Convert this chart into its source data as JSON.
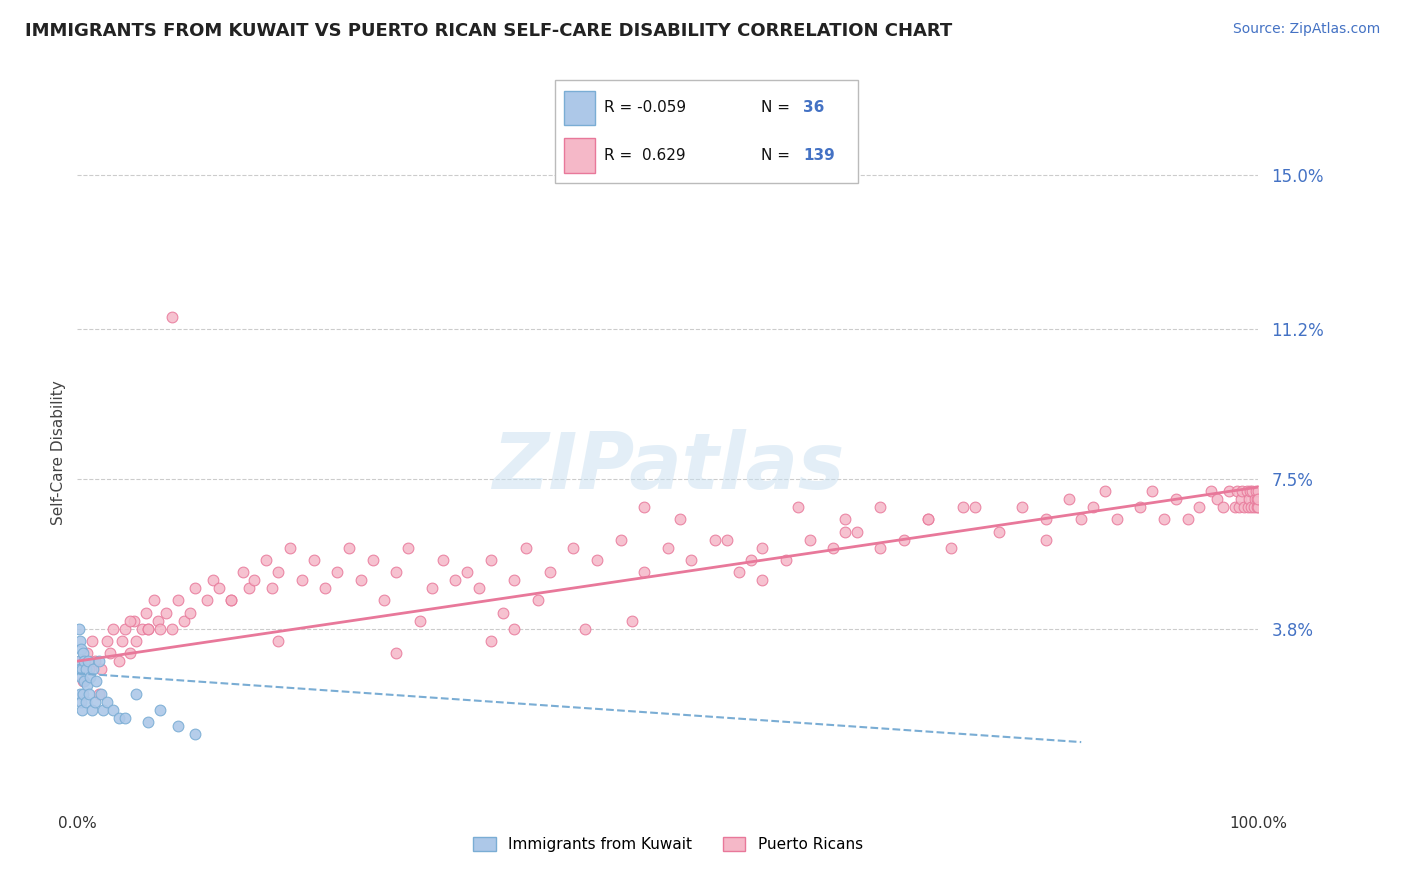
{
  "title": "IMMIGRANTS FROM KUWAIT VS PUERTO RICAN SELF-CARE DISABILITY CORRELATION CHART",
  "source": "Source: ZipAtlas.com",
  "ylabel": "Self-Care Disability",
  "yticks": [
    0.0,
    0.038,
    0.075,
    0.112,
    0.15
  ],
  "ytick_labels": [
    "",
    "3.8%",
    "7.5%",
    "11.2%",
    "15.0%"
  ],
  "xlim": [
    0.0,
    1.0
  ],
  "ylim": [
    -0.005,
    0.168
  ],
  "color_blue": "#adc8e8",
  "color_pink": "#f5b8c8",
  "edge_blue": "#7aadd4",
  "edge_pink": "#e8789a",
  "line_blue_color": "#7aadd4",
  "line_pink_color": "#e8789a",
  "watermark": "ZIPatlas",
  "title_color": "#222222",
  "source_color": "#4472c4",
  "ytick_color": "#4472c4",
  "blue_x": [
    0.001,
    0.001,
    0.002,
    0.002,
    0.002,
    0.003,
    0.003,
    0.003,
    0.004,
    0.004,
    0.005,
    0.005,
    0.006,
    0.006,
    0.007,
    0.007,
    0.008,
    0.009,
    0.01,
    0.011,
    0.012,
    0.013,
    0.015,
    0.016,
    0.018,
    0.02,
    0.022,
    0.025,
    0.03,
    0.035,
    0.04,
    0.05,
    0.06,
    0.07,
    0.085,
    0.1
  ],
  "blue_y": [
    0.03,
    0.038,
    0.022,
    0.028,
    0.035,
    0.02,
    0.026,
    0.033,
    0.018,
    0.028,
    0.022,
    0.032,
    0.025,
    0.03,
    0.02,
    0.028,
    0.024,
    0.03,
    0.022,
    0.026,
    0.018,
    0.028,
    0.02,
    0.025,
    0.03,
    0.022,
    0.018,
    0.02,
    0.018,
    0.016,
    0.016,
    0.022,
    0.015,
    0.018,
    0.014,
    0.012
  ],
  "pink_x": [
    0.003,
    0.005,
    0.008,
    0.01,
    0.012,
    0.015,
    0.018,
    0.02,
    0.025,
    0.028,
    0.03,
    0.035,
    0.038,
    0.04,
    0.045,
    0.048,
    0.05,
    0.055,
    0.058,
    0.06,
    0.065,
    0.068,
    0.07,
    0.075,
    0.08,
    0.085,
    0.09,
    0.095,
    0.1,
    0.11,
    0.115,
    0.12,
    0.13,
    0.14,
    0.145,
    0.15,
    0.16,
    0.165,
    0.17,
    0.18,
    0.19,
    0.2,
    0.21,
    0.22,
    0.23,
    0.24,
    0.25,
    0.26,
    0.27,
    0.28,
    0.29,
    0.3,
    0.31,
    0.32,
    0.33,
    0.34,
    0.35,
    0.36,
    0.37,
    0.38,
    0.39,
    0.4,
    0.42,
    0.44,
    0.46,
    0.48,
    0.5,
    0.51,
    0.52,
    0.54,
    0.56,
    0.58,
    0.6,
    0.61,
    0.62,
    0.64,
    0.65,
    0.66,
    0.68,
    0.7,
    0.72,
    0.74,
    0.76,
    0.78,
    0.8,
    0.82,
    0.84,
    0.85,
    0.86,
    0.87,
    0.88,
    0.9,
    0.91,
    0.92,
    0.93,
    0.94,
    0.95,
    0.96,
    0.965,
    0.97,
    0.975,
    0.98,
    0.982,
    0.984,
    0.985,
    0.986,
    0.988,
    0.99,
    0.991,
    0.992,
    0.993,
    0.994,
    0.995,
    0.996,
    0.997,
    0.998,
    0.999,
    0.9992,
    0.9995,
    0.9997,
    0.9999,
    0.48,
    0.35,
    0.55,
    0.75,
    0.65,
    0.43,
    0.57,
    0.72,
    0.82,
    0.68,
    0.58,
    0.47,
    0.37,
    0.27,
    0.17,
    0.08,
    0.13,
    0.06,
    0.045
  ],
  "pink_y": [
    0.03,
    0.025,
    0.032,
    0.028,
    0.035,
    0.03,
    0.022,
    0.028,
    0.035,
    0.032,
    0.038,
    0.03,
    0.035,
    0.038,
    0.032,
    0.04,
    0.035,
    0.038,
    0.042,
    0.038,
    0.045,
    0.04,
    0.038,
    0.042,
    0.038,
    0.045,
    0.04,
    0.042,
    0.048,
    0.045,
    0.05,
    0.048,
    0.045,
    0.052,
    0.048,
    0.05,
    0.055,
    0.048,
    0.052,
    0.058,
    0.05,
    0.055,
    0.048,
    0.052,
    0.058,
    0.05,
    0.055,
    0.045,
    0.052,
    0.058,
    0.04,
    0.048,
    0.055,
    0.05,
    0.052,
    0.048,
    0.055,
    0.042,
    0.05,
    0.058,
    0.045,
    0.052,
    0.058,
    0.055,
    0.06,
    0.052,
    0.058,
    0.065,
    0.055,
    0.06,
    0.052,
    0.058,
    0.055,
    0.068,
    0.06,
    0.058,
    0.065,
    0.062,
    0.068,
    0.06,
    0.065,
    0.058,
    0.068,
    0.062,
    0.068,
    0.065,
    0.07,
    0.065,
    0.068,
    0.072,
    0.065,
    0.068,
    0.072,
    0.065,
    0.07,
    0.065,
    0.068,
    0.072,
    0.07,
    0.068,
    0.072,
    0.068,
    0.072,
    0.068,
    0.07,
    0.072,
    0.068,
    0.072,
    0.068,
    0.07,
    0.072,
    0.068,
    0.072,
    0.068,
    0.07,
    0.072,
    0.068,
    0.07,
    0.072,
    0.068,
    0.07,
    0.068,
    0.035,
    0.06,
    0.068,
    0.062,
    0.038,
    0.055,
    0.065,
    0.06,
    0.058,
    0.05,
    0.04,
    0.038,
    0.032,
    0.035,
    0.115,
    0.045,
    0.038,
    0.04
  ],
  "pink_trend_x0": 0.0,
  "pink_trend_x1": 1.0,
  "pink_trend_y0": 0.03,
  "pink_trend_y1": 0.073,
  "blue_trend_x0": 0.0,
  "blue_trend_x1": 0.85,
  "blue_trend_y0": 0.027,
  "blue_trend_y1": 0.01
}
